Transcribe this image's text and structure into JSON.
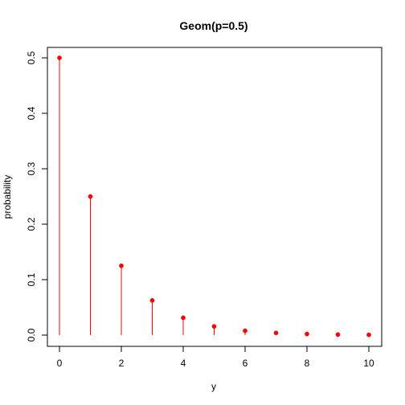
{
  "chart_data": {
    "type": "scatter",
    "title": "Geom(p=0.5)",
    "xlabel": "y",
    "ylabel": "probability",
    "xlim": [
      0,
      10
    ],
    "ylim": [
      0,
      0.5
    ],
    "x_ticks": [
      "0",
      "2",
      "4",
      "6",
      "8",
      "10"
    ],
    "y_ticks": [
      "0.0",
      "0.1",
      "0.2",
      "0.3",
      "0.4",
      "0.5"
    ],
    "grid": false,
    "series": [
      {
        "x": [
          0,
          1,
          2,
          3,
          4,
          5,
          6,
          7,
          8,
          9,
          10
        ],
        "values": [
          0.5,
          0.25,
          0.125,
          0.0625,
          0.03125,
          0.015625,
          0.0078125,
          0.00390625,
          0.001953125,
          0.0009765625,
          0.00048828125
        ],
        "color": "#ff0000",
        "style": "points-with-vertical-lines"
      }
    ]
  }
}
